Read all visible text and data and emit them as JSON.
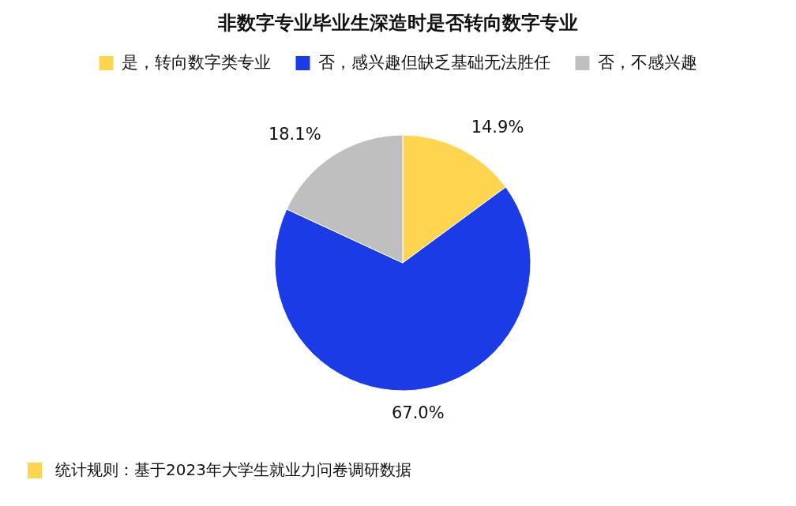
{
  "chart_data": {
    "type": "pie",
    "title": "非数字专业毕业生深造时是否转向数字专业",
    "categories": [
      "是，转向数字类专业",
      "否，感兴趣但缺乏基础无法胜任",
      "否，不感兴趣"
    ],
    "values": [
      14.9,
      67.0,
      18.1
    ],
    "value_labels": [
      "14.9%",
      "67.0%",
      "18.1%"
    ],
    "colors": [
      "#ffd54f",
      "#1a3be6",
      "#bfbfbf"
    ],
    "legend": "top",
    "annotations": [
      "统计规则：基于2023年大学生就业力问卷调研数据"
    ]
  }
}
